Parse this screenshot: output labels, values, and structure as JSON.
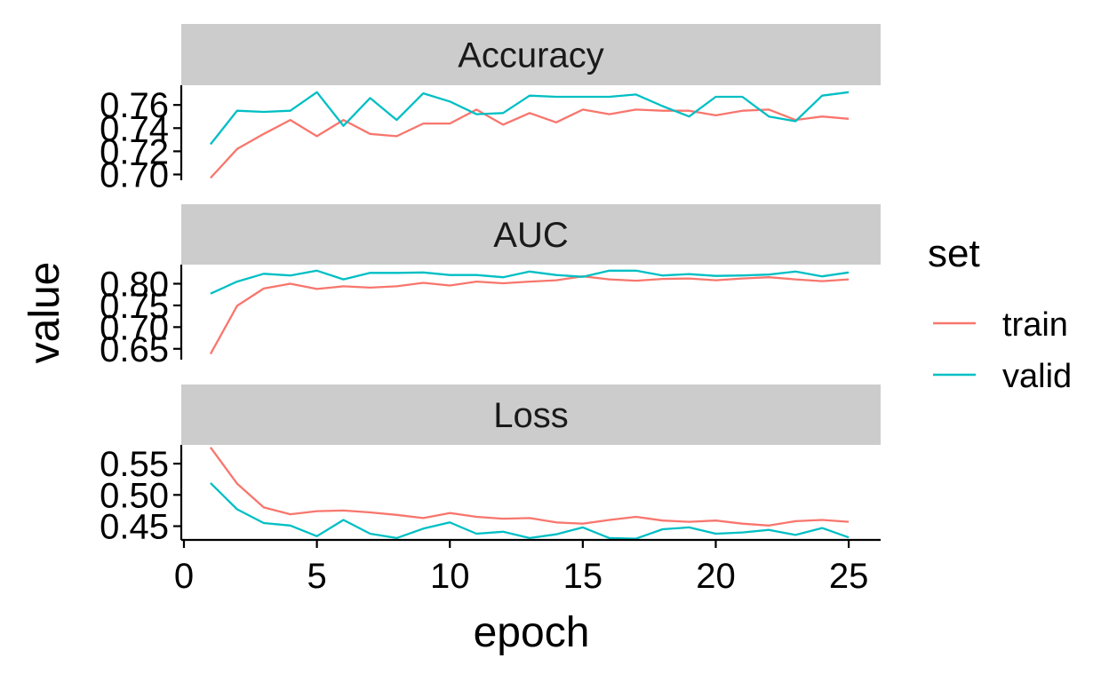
{
  "chart_data": {
    "type": "line",
    "xlabel": "epoch",
    "ylabel": "value",
    "x_ticks": [
      0,
      5,
      10,
      15,
      20,
      25
    ],
    "xlim": [
      -0.1,
      26.2
    ],
    "legend": {
      "title": "set",
      "placement": "right",
      "items": [
        {
          "name": "train",
          "color": "#F8766D"
        },
        {
          "name": "valid",
          "color": "#00BFC4"
        }
      ]
    },
    "grid": false,
    "x": [
      1,
      2,
      3,
      4,
      5,
      6,
      7,
      8,
      9,
      10,
      11,
      12,
      13,
      14,
      15,
      16,
      17,
      18,
      19,
      20,
      21,
      22,
      23,
      24,
      25
    ],
    "panels": [
      {
        "strip": "Accuracy",
        "ylim": [
          0.695,
          0.777
        ],
        "y_ticks": [
          0.7,
          0.72,
          0.74,
          0.76
        ],
        "y_tick_labels": [
          "0.70",
          "0.72",
          "0.74",
          "0.76"
        ],
        "series": [
          {
            "name": "train",
            "values": [
              0.697,
              0.722,
              0.735,
              0.747,
              0.733,
              0.747,
              0.735,
              0.733,
              0.744,
              0.744,
              0.756,
              0.743,
              0.753,
              0.745,
              0.756,
              0.752,
              0.756,
              0.755,
              0.755,
              0.751,
              0.755,
              0.756,
              0.747,
              0.75,
              0.748
            ]
          },
          {
            "name": "valid",
            "values": [
              0.726,
              0.755,
              0.754,
              0.755,
              0.771,
              0.742,
              0.766,
              0.747,
              0.77,
              0.763,
              0.752,
              0.753,
              0.768,
              0.767,
              0.767,
              0.767,
              0.769,
              0.759,
              0.75,
              0.767,
              0.767,
              0.75,
              0.746,
              0.768,
              0.771
            ]
          }
        ]
      },
      {
        "strip": "AUC",
        "ylim": [
          0.625,
          0.844
        ],
        "y_ticks": [
          0.65,
          0.7,
          0.75,
          0.8
        ],
        "y_tick_labels": [
          "0.65",
          "0.70",
          "0.75",
          "0.80"
        ],
        "series": [
          {
            "name": "train",
            "values": [
              0.638,
              0.749,
              0.789,
              0.8,
              0.788,
              0.794,
              0.791,
              0.794,
              0.802,
              0.796,
              0.805,
              0.801,
              0.805,
              0.808,
              0.817,
              0.81,
              0.807,
              0.811,
              0.812,
              0.808,
              0.812,
              0.815,
              0.81,
              0.806,
              0.81
            ]
          },
          {
            "name": "valid",
            "values": [
              0.777,
              0.805,
              0.823,
              0.819,
              0.83,
              0.81,
              0.825,
              0.825,
              0.826,
              0.82,
              0.82,
              0.815,
              0.828,
              0.82,
              0.816,
              0.83,
              0.83,
              0.819,
              0.822,
              0.818,
              0.819,
              0.821,
              0.828,
              0.817,
              0.826
            ]
          }
        ]
      },
      {
        "strip": "Loss",
        "ylim": [
          0.428,
          0.58
        ],
        "y_ticks": [
          0.45,
          0.5,
          0.55
        ],
        "y_tick_labels": [
          "0.45",
          "0.50",
          "0.55"
        ],
        "series": [
          {
            "name": "train",
            "values": [
              0.576,
              0.518,
              0.48,
              0.469,
              0.474,
              0.475,
              0.472,
              0.468,
              0.463,
              0.471,
              0.465,
              0.462,
              0.463,
              0.456,
              0.454,
              0.46,
              0.465,
              0.459,
              0.457,
              0.459,
              0.454,
              0.451,
              0.458,
              0.46,
              0.457
            ]
          },
          {
            "name": "valid",
            "values": [
              0.519,
              0.477,
              0.455,
              0.451,
              0.434,
              0.46,
              0.438,
              0.431,
              0.446,
              0.456,
              0.438,
              0.441,
              0.431,
              0.437,
              0.448,
              0.431,
              0.43,
              0.445,
              0.448,
              0.438,
              0.44,
              0.444,
              0.436,
              0.447,
              0.432
            ]
          }
        ]
      }
    ]
  }
}
